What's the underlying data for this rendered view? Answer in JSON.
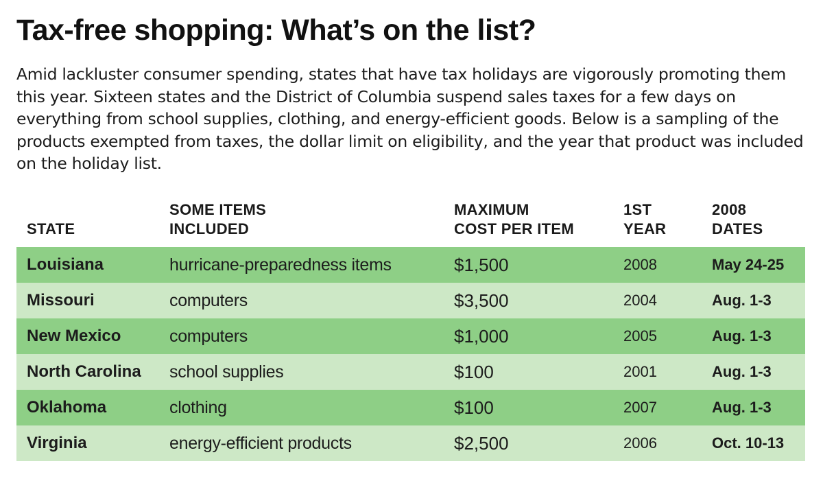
{
  "title": "Tax-free shopping: What’s on the list?",
  "intro": "Amid lackluster consumer spending, states that have tax holidays are vigorously promoting them this year. Sixteen states and the District of Columbia suspend sales taxes for a few days on everything from school supplies, clothing, and energy-efficient goods. Below is a sampling of the products exempted from taxes, the dollar limit on eligibility, and the year that product was included on the holiday list.",
  "colors": {
    "row_dark": "#8ecf86",
    "row_light": "#cde8c6",
    "text": "#1a1a1a"
  },
  "chart_data": {
    "type": "table",
    "columns": [
      "STATE",
      "SOME ITEMS\nINCLUDED",
      "MAXIMUM\nCOST PER ITEM",
      "1ST\nYEAR",
      "2008\nDATES"
    ],
    "rows": [
      [
        "Louisiana",
        "hurricane-preparedness items",
        "$1,500",
        "2008",
        "May 24-25"
      ],
      [
        "Missouri",
        "computers",
        "$3,500",
        "2004",
        "Aug. 1-3"
      ],
      [
        "New Mexico",
        "computers",
        "$1,000",
        "2005",
        "Aug. 1-3"
      ],
      [
        "North Carolina",
        "school supplies",
        "$100",
        "2001",
        "Aug. 1-3"
      ],
      [
        "Oklahoma",
        "clothing",
        "$100",
        "2007",
        "Aug. 1-3"
      ],
      [
        "Virginia",
        "energy-efficient products",
        "$2,500",
        "2006",
        "Oct. 10-13"
      ]
    ]
  }
}
